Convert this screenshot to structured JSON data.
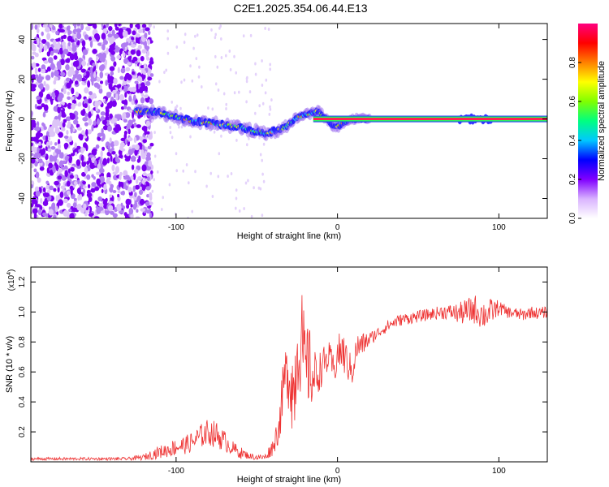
{
  "figure_title": "C2E1.2025.354.06.44.E13",
  "chart_data": [
    {
      "type": "heatmap",
      "title": "C2E1.2025.354.06.44.E13",
      "xlabel": "Height of straight line (km)",
      "ylabel": "Frequency (Hz)",
      "xlim": [
        -190,
        130
      ],
      "ylim": [
        -50,
        48
      ],
      "xticks": [
        -100,
        0,
        100
      ],
      "xtick_labels": [
        "-100",
        "0",
        "100"
      ],
      "yticks": [
        -40,
        -20,
        0,
        20,
        40
      ],
      "ytick_labels": [
        "-40",
        "-20",
        "0",
        "20",
        "40"
      ],
      "colorbar": {
        "label": "Normalized spectral amplitude",
        "range": [
          0,
          1
        ],
        "ticks": [
          0.0,
          0.2,
          0.4,
          0.6,
          0.8
        ],
        "tick_labels": [
          "0.0",
          "0.2",
          "0.4",
          "0.6",
          "0.8"
        ],
        "colormap": [
          "#ffffff",
          "#d9b3ff",
          "#8000ff",
          "#0000ff",
          "#00c8ff",
          "#00ff80",
          "#80ff00",
          "#ffff00",
          "#ff8000",
          "#ff0000",
          "#ff0080"
        ]
      },
      "ridge": {
        "description_points_x": [
          -125,
          -120,
          -110,
          -100,
          -90,
          -80,
          -70,
          -60,
          -52,
          -45,
          -38,
          -32,
          -28,
          -24,
          -20,
          -16,
          -12,
          -8,
          -4,
          0,
          4,
          8,
          12,
          20,
          130
        ],
        "description_points_y": [
          4,
          4,
          3,
          1,
          -1,
          -2,
          -3,
          -4,
          -6,
          -7,
          -6,
          -4,
          -1,
          1,
          2,
          3,
          4,
          1,
          -3,
          -4,
          -2,
          0,
          0,
          0,
          0
        ],
        "noise_region_x": [
          -190,
          -115
        ]
      },
      "horizontal_line_y": 0
    },
    {
      "type": "line",
      "xlabel": "Height of straight line (km)",
      "ylabel": "SNR (10 * v/v)",
      "y_multiplier_label": "(x10",
      "y_multiplier_exp": "4",
      "y_multiplier_close": ")",
      "xlim": [
        -190,
        130
      ],
      "ylim": [
        0,
        1.3
      ],
      "xticks": [
        -100,
        0,
        100
      ],
      "xtick_labels": [
        "-100",
        "0",
        "100"
      ],
      "yticks": [
        0.2,
        0.4,
        0.6,
        0.8,
        1.0,
        1.2
      ],
      "ytick_labels": [
        "0.2",
        "0.4",
        "0.6",
        "0.8",
        "1.0",
        "1.2"
      ],
      "line_color": "#ee3333",
      "series": [
        {
          "name": "SNR",
          "x": [
            -190,
            -170,
            -150,
            -130,
            -120,
            -112,
            -105,
            -100,
            -95,
            -90,
            -85,
            -80,
            -75,
            -70,
            -65,
            -60,
            -55,
            -50,
            -45,
            -40,
            -36,
            -33,
            -30,
            -27,
            -25,
            -22,
            -20,
            -18,
            -15,
            -12,
            -10,
            -8,
            -5,
            -2,
            0,
            3,
            6,
            9,
            12,
            15,
            20,
            25,
            30,
            35,
            40,
            45,
            50,
            55,
            60,
            65,
            70,
            75,
            80,
            85,
            90,
            95,
            100,
            105,
            110,
            115,
            120,
            125,
            130
          ],
          "y": [
            0.02,
            0.02,
            0.02,
            0.02,
            0.03,
            0.06,
            0.08,
            0.1,
            0.11,
            0.13,
            0.17,
            0.2,
            0.18,
            0.14,
            0.09,
            0.06,
            0.04,
            0.03,
            0.03,
            0.1,
            0.25,
            0.55,
            0.6,
            0.45,
            0.75,
            0.8,
            0.6,
            0.65,
            0.55,
            0.6,
            0.62,
            0.66,
            0.7,
            0.6,
            0.72,
            0.74,
            0.66,
            0.6,
            0.76,
            0.78,
            0.82,
            0.86,
            0.9,
            0.93,
            0.95,
            0.96,
            0.97,
            0.98,
            0.99,
            1.0,
            1.0,
            0.99,
            1.0,
            1.02,
            0.98,
            1.0,
            1.03,
            1.0,
            0.99,
            0.98,
            1.0,
            0.99,
            1.0
          ],
          "noise_amplitude": [
            0.01,
            0.01,
            0.01,
            0.01,
            0.02,
            0.04,
            0.05,
            0.06,
            0.06,
            0.07,
            0.08,
            0.09,
            0.09,
            0.07,
            0.05,
            0.04,
            0.02,
            0.02,
            0.02,
            0.06,
            0.12,
            0.2,
            0.25,
            0.35,
            0.3,
            0.35,
            0.3,
            0.3,
            0.2,
            0.15,
            0.12,
            0.12,
            0.1,
            0.1,
            0.12,
            0.15,
            0.12,
            0.1,
            0.1,
            0.08,
            0.05,
            0.04,
            0.04,
            0.04,
            0.04,
            0.04,
            0.04,
            0.04,
            0.04,
            0.05,
            0.05,
            0.07,
            0.09,
            0.1,
            0.1,
            0.09,
            0.05,
            0.04,
            0.04,
            0.04,
            0.04,
            0.04,
            0.04
          ]
        }
      ]
    }
  ]
}
